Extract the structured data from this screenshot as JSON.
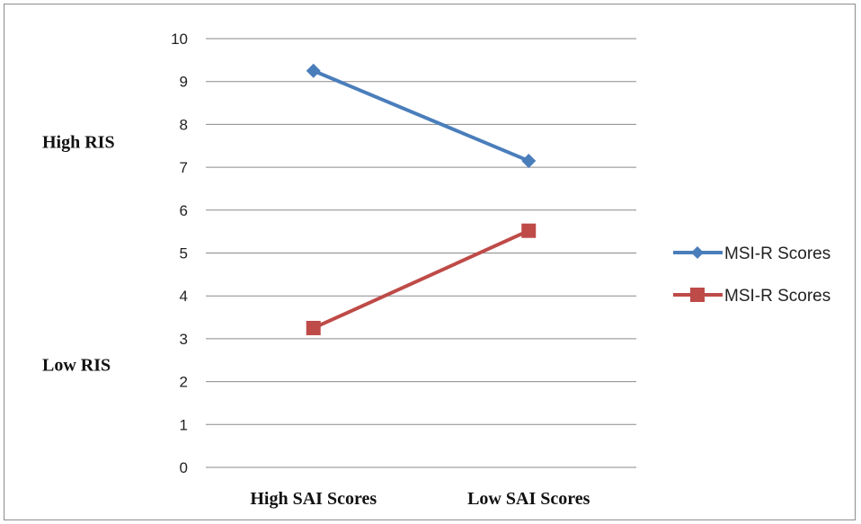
{
  "chart_data": {
    "type": "line",
    "categories": [
      "High SAI Scores",
      "Low SAI Scores"
    ],
    "series": [
      {
        "name": "MSI-R Scores",
        "values": [
          9.25,
          7.15
        ],
        "color": "#4A7EBB",
        "marker": "diamond"
      },
      {
        "name": "MSI-R Scores",
        "values": [
          3.25,
          5.52
        ],
        "color": "#BE4B48",
        "marker": "square"
      }
    ],
    "ylim": [
      0,
      10
    ],
    "yticks": [
      "0",
      "1",
      "2",
      "3",
      "4",
      "5",
      "6",
      "7",
      "8",
      "9",
      "10"
    ],
    "annotations": [
      {
        "text": "High RIS",
        "y": 7.6
      },
      {
        "text": "Low RIS",
        "y": 2.4
      }
    ],
    "grid": true,
    "legend_position": "right"
  }
}
